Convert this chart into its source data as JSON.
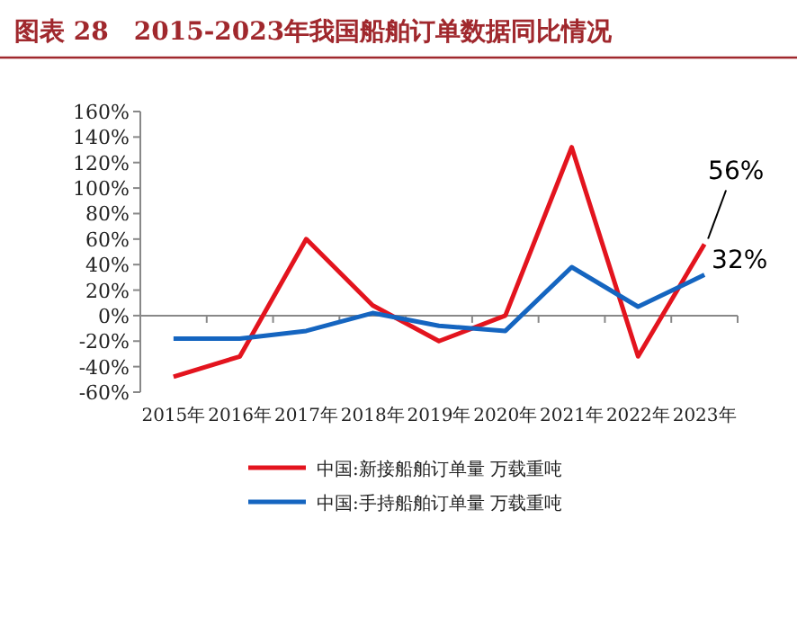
{
  "chart_data": {
    "type": "line",
    "title": "图表 28　2015-2023年我国船舶订单数据同比情况",
    "categories": [
      "2015年",
      "2016年",
      "2017年",
      "2018年",
      "2019年",
      "2020年",
      "2021年",
      "2022年",
      "2023年"
    ],
    "series": [
      {
        "name": "中国:新接船舶订单量 万载重吨",
        "color": "#e3141e",
        "values": [
          -48,
          -32,
          60,
          8,
          -20,
          0,
          132,
          -32,
          56
        ]
      },
      {
        "name": "中国:手持船舶订单量 万载重吨",
        "color": "#1565c0",
        "values": [
          -18,
          -18,
          -12,
          2,
          -8,
          -12,
          38,
          7,
          32
        ]
      }
    ],
    "ylim": [
      -60,
      160
    ],
    "yticks": [
      {
        "value": -60,
        "label": "-60%"
      },
      {
        "value": -40,
        "label": "-40%"
      },
      {
        "value": -20,
        "label": "-20%"
      },
      {
        "value": 0,
        "label": "0%"
      },
      {
        "value": 20,
        "label": "20%"
      },
      {
        "value": 40,
        "label": "40%"
      },
      {
        "value": 60,
        "label": "60%"
      },
      {
        "value": 80,
        "label": "80%"
      },
      {
        "value": 100,
        "label": "100%"
      },
      {
        "value": 120,
        "label": "120%"
      },
      {
        "value": 140,
        "label": "140%"
      },
      {
        "value": 160,
        "label": "160%"
      }
    ],
    "annotations": [
      {
        "text": "56%",
        "x": "2023年",
        "y": 56
      },
      {
        "text": "32%",
        "x": "2023年",
        "y": 32
      }
    ],
    "legend": "bottom",
    "marker": "none",
    "line_style": "solid"
  }
}
